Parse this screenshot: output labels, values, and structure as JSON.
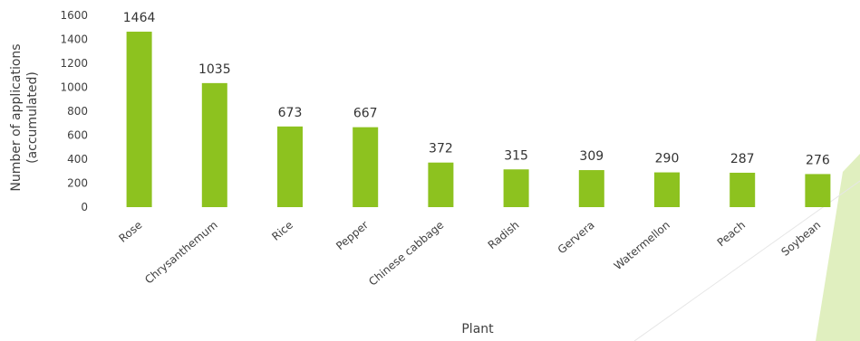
{
  "chart_data": {
    "type": "bar",
    "categories": [
      "Rose",
      "Chrysanthemum",
      "Rice",
      "Pepper",
      "Chinese cabbage",
      "Radish",
      "Gervera",
      "Watermellon",
      "Peach",
      "Soybean"
    ],
    "values": [
      1464,
      1035,
      673,
      667,
      372,
      315,
      309,
      290,
      287,
      276
    ],
    "data_labels": [
      "1464",
      "1035",
      "673",
      "667",
      "372",
      "315",
      "309",
      "290",
      "287",
      "276"
    ],
    "title": "",
    "xlabel": "Plant",
    "ylabel_lines": [
      "Number of applications",
      "(accumulated)"
    ],
    "ylim": [
      0,
      1600
    ],
    "yticks": [
      0,
      200,
      400,
      600,
      800,
      1000,
      1200,
      1400,
      1600
    ],
    "grid": false,
    "legend": "none",
    "colors": {
      "bar": "#8dc21f",
      "text": "#404040",
      "decoration": "#c7e28a"
    }
  }
}
